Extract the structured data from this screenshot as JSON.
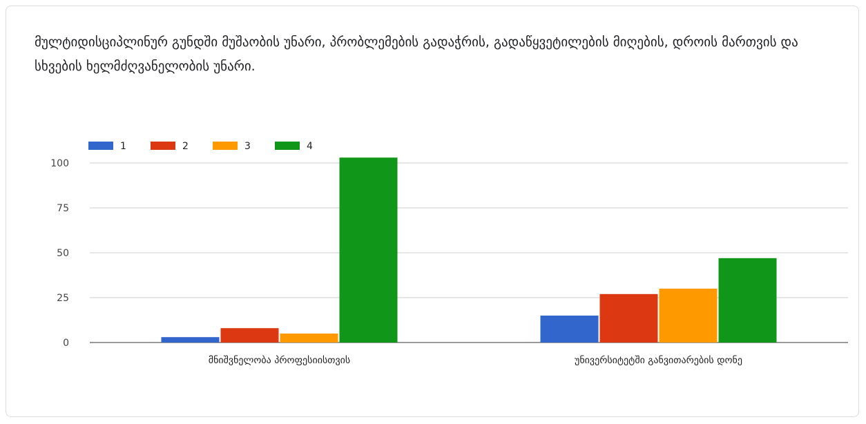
{
  "question_title": "მულტიდისციპლინურ გუნდში მუშაობის უნარი, პრობლემების გადაჭრის, გადაწყვეტილების მიღების, დროის მართვის და სხვების ხელმძღვანელობის უნარი.",
  "chart_data": {
    "type": "bar",
    "categories": [
      "მნიშვნელობა პროფესიისთვის",
      "უნივერსიტეტში განვითარების დონე"
    ],
    "series": [
      {
        "name": "1",
        "color": "#3366cc",
        "values": [
          3,
          15
        ]
      },
      {
        "name": "2",
        "color": "#dc3912",
        "values": [
          8,
          27
        ]
      },
      {
        "name": "3",
        "color": "#ff9900",
        "values": [
          5,
          30
        ]
      },
      {
        "name": "4",
        "color": "#109618",
        "values": [
          103,
          47
        ]
      }
    ],
    "yticks": [
      0,
      25,
      50,
      75,
      100
    ],
    "ylim": [
      0,
      110
    ],
    "grid": true,
    "legend_position": "top-left"
  }
}
